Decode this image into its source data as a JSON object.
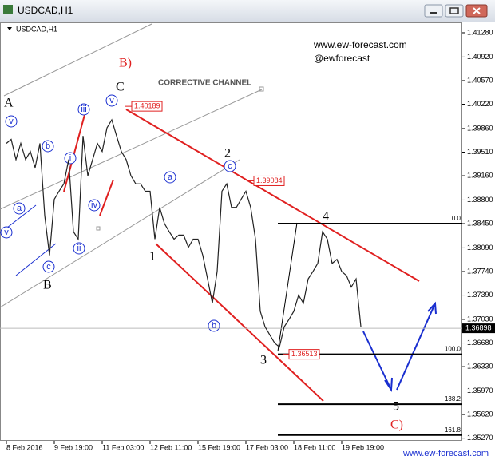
{
  "chart_data": {
    "type": "line",
    "title": "USDCAD,H1",
    "symbol_label": "USDCAD,H1",
    "channel_label": "CORRECTIVE CHANNEL",
    "site": "www.ew-forecast.com",
    "handle": "@ewforecast",
    "footer": "www.ew-forecast.com",
    "color": "#222222",
    "categories": [
      "8 Feb 2016",
      null,
      null,
      null,
      null,
      null,
      null,
      null,
      null,
      null,
      "9 Feb 19:00",
      null,
      null,
      null,
      null,
      null,
      null,
      null,
      null,
      null,
      "11 Feb 03:00",
      null,
      null,
      null,
      null,
      null,
      null,
      null,
      null,
      null,
      "12 Feb 11:00",
      null,
      null,
      null,
      null,
      null,
      null,
      null,
      null,
      null,
      "15 Feb 19:00",
      null,
      null,
      null,
      null,
      null,
      null,
      null,
      null,
      null,
      "17 Feb 03:00",
      null,
      null,
      null,
      null,
      null,
      null,
      null,
      null,
      null,
      "18 Feb 11:00",
      null,
      null,
      null,
      null,
      null,
      null,
      null,
      null,
      null,
      "19 Feb 19:00",
      null,
      null,
      null,
      null
    ],
    "values": [
      1.3964,
      1.397,
      1.394,
      1.3964,
      1.394,
      1.3952,
      1.3928,
      1.3964,
      1.3857,
      1.3798,
      1.3881,
      1.3893,
      1.3904,
      1.394,
      1.3833,
      1.3822,
      1.3975,
      1.3916,
      1.394,
      1.3964,
      1.3952,
      1.3987,
      1.3999,
      1.3975,
      1.3952,
      1.394,
      1.3916,
      1.3904,
      1.3904,
      1.3893,
      1.3893,
      1.3822,
      1.3869,
      1.3845,
      1.3833,
      1.3822,
      1.3828,
      1.3828,
      1.381,
      1.3822,
      1.3822,
      1.3798,
      1.3763,
      1.3727,
      1.3774,
      1.3893,
      1.3904,
      1.3869,
      1.3869,
      1.3881,
      1.3893,
      1.3869,
      1.3822,
      1.3715,
      1.3692,
      1.368,
      1.3668,
      1.3662,
      1.3692,
      1.3703,
      1.3715,
      1.3739,
      1.3727,
      1.3763,
      1.3774,
      1.3786,
      1.3833,
      1.3822,
      1.3786,
      1.3792,
      1.3774,
      1.3768,
      1.3751,
      1.3763,
      1.3692
    ],
    "ylim": [
      1.3523,
      1.4141
    ],
    "yticks": [
      {
        "value": 1.4128,
        "label": "1.41280"
      },
      {
        "value": 1.4092,
        "label": "1.40920"
      },
      {
        "value": 1.4057,
        "label": "1.40570"
      },
      {
        "value": 1.4022,
        "label": "1.40220"
      },
      {
        "value": 1.3986,
        "label": "1.39860"
      },
      {
        "value": 1.3951,
        "label": "1.39510"
      },
      {
        "value": 1.3916,
        "label": "1.39160"
      },
      {
        "value": 1.388,
        "label": "1.38800"
      },
      {
        "value": 1.3845,
        "label": "1.38450"
      },
      {
        "value": 1.3809,
        "label": "1.38090"
      },
      {
        "value": 1.3774,
        "label": "1.37740"
      },
      {
        "value": 1.3739,
        "label": "1.37390"
      },
      {
        "value": 1.3703,
        "label": "1.37030"
      },
      {
        "value": 1.3668,
        "label": "1.36680"
      },
      {
        "value": 1.3633,
        "label": "1.36330"
      },
      {
        "value": 1.3597,
        "label": "1.35970"
      },
      {
        "value": 1.3562,
        "label": "1.35620"
      },
      {
        "value": 1.3527,
        "label": "1.35270"
      }
    ],
    "price_labels": [
      1.40189,
      1.39084,
      1.36513
    ],
    "current_price": 1.36898,
    "fib_from": 1.3845,
    "fib_to": 1.36513,
    "fib_levels": [
      {
        "value": 0,
        "label": "0.0"
      },
      {
        "value": 100,
        "label": "100.0"
      },
      138.2,
      161.8
    ],
    "annotations": [
      "B)",
      "C",
      "A",
      "B",
      "1",
      "2",
      "3",
      "4",
      "5",
      "C)"
    ],
    "circled": [
      "v",
      "b",
      "a",
      "v",
      "c",
      "iii",
      "i",
      "iv",
      "ii",
      "v",
      "a",
      "c",
      "b"
    ]
  }
}
